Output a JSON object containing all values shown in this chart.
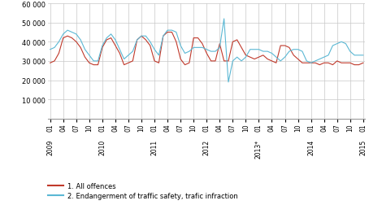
{
  "ylim": [
    0,
    60000
  ],
  "yticks": [
    0,
    10000,
    20000,
    30000,
    40000,
    50000,
    60000
  ],
  "ytick_labels": [
    "",
    "10 000",
    "20 000",
    "30 000",
    "40 000",
    "50 000",
    "60 000"
  ],
  "background_color": "#ffffff",
  "grid_color": "#c8c8c8",
  "line1_color": "#c0392b",
  "line2_color": "#5bb8d4",
  "legend1": "1. All offences",
  "legend2": "2. Endangerment of traffic safety, trafic infraction",
  "red_data": [
    29000,
    30000,
    34000,
    42000,
    43000,
    42000,
    40000,
    37000,
    32000,
    29000,
    28000,
    28000,
    37000,
    41000,
    42000,
    38000,
    34000,
    28000,
    29000,
    30000,
    41000,
    43000,
    41000,
    38000,
    30000,
    29000,
    43000,
    45000,
    45000,
    40000,
    31000,
    28000,
    29000,
    42000,
    42000,
    39000,
    34000,
    30000,
    30000,
    39000,
    30000,
    30000,
    40000,
    41000,
    37000,
    33000,
    32000,
    31000,
    32000,
    33000,
    31000,
    30000,
    29000,
    38000,
    38000,
    37000,
    33000,
    31000,
    29000,
    29000,
    29000,
    29000,
    28000,
    29000,
    29000,
    28000,
    30000,
    29000,
    29000,
    29000,
    28000,
    28000,
    29000
  ],
  "blue_data": [
    36000,
    37000,
    40000,
    44000,
    46000,
    45000,
    44000,
    41000,
    36000,
    33000,
    30000,
    30000,
    38000,
    42000,
    44000,
    41000,
    36000,
    31000,
    33000,
    35000,
    41000,
    43000,
    43000,
    40000,
    36000,
    33000,
    43000,
    46000,
    46000,
    45000,
    38000,
    34000,
    35000,
    37000,
    37000,
    37000,
    36000,
    35000,
    35000,
    37000,
    52000,
    19000,
    30000,
    32000,
    30000,
    32000,
    36000,
    36000,
    36000,
    35000,
    35000,
    34000,
    32000,
    30000,
    32000,
    35000,
    36000,
    36000,
    35000,
    30000,
    29000,
    30000,
    31000,
    32000,
    33000,
    38000,
    39000,
    40000,
    39000,
    35000,
    33000,
    33000,
    33000
  ],
  "xtick_months": [
    0,
    3,
    6,
    9,
    12,
    15,
    18,
    21,
    24,
    27,
    30,
    33,
    36,
    39,
    42,
    45,
    48,
    51,
    54,
    57,
    60,
    63,
    66,
    69,
    72
  ],
  "xtick_month_labels": [
    "01",
    "04",
    "07",
    "10",
    "01",
    "04",
    "07",
    "10",
    "01",
    "04",
    "07",
    "10",
    "01",
    "04",
    "07",
    "10",
    "01",
    "04",
    "07",
    "10",
    "01",
    "04",
    "07",
    "10",
    "01"
  ],
  "year_tick_positions": [
    0,
    12,
    24,
    36,
    48,
    60,
    72
  ],
  "year_labels": [
    "2009",
    "2010",
    "2011",
    "2012",
    "2013*",
    "2014",
    "2015"
  ]
}
